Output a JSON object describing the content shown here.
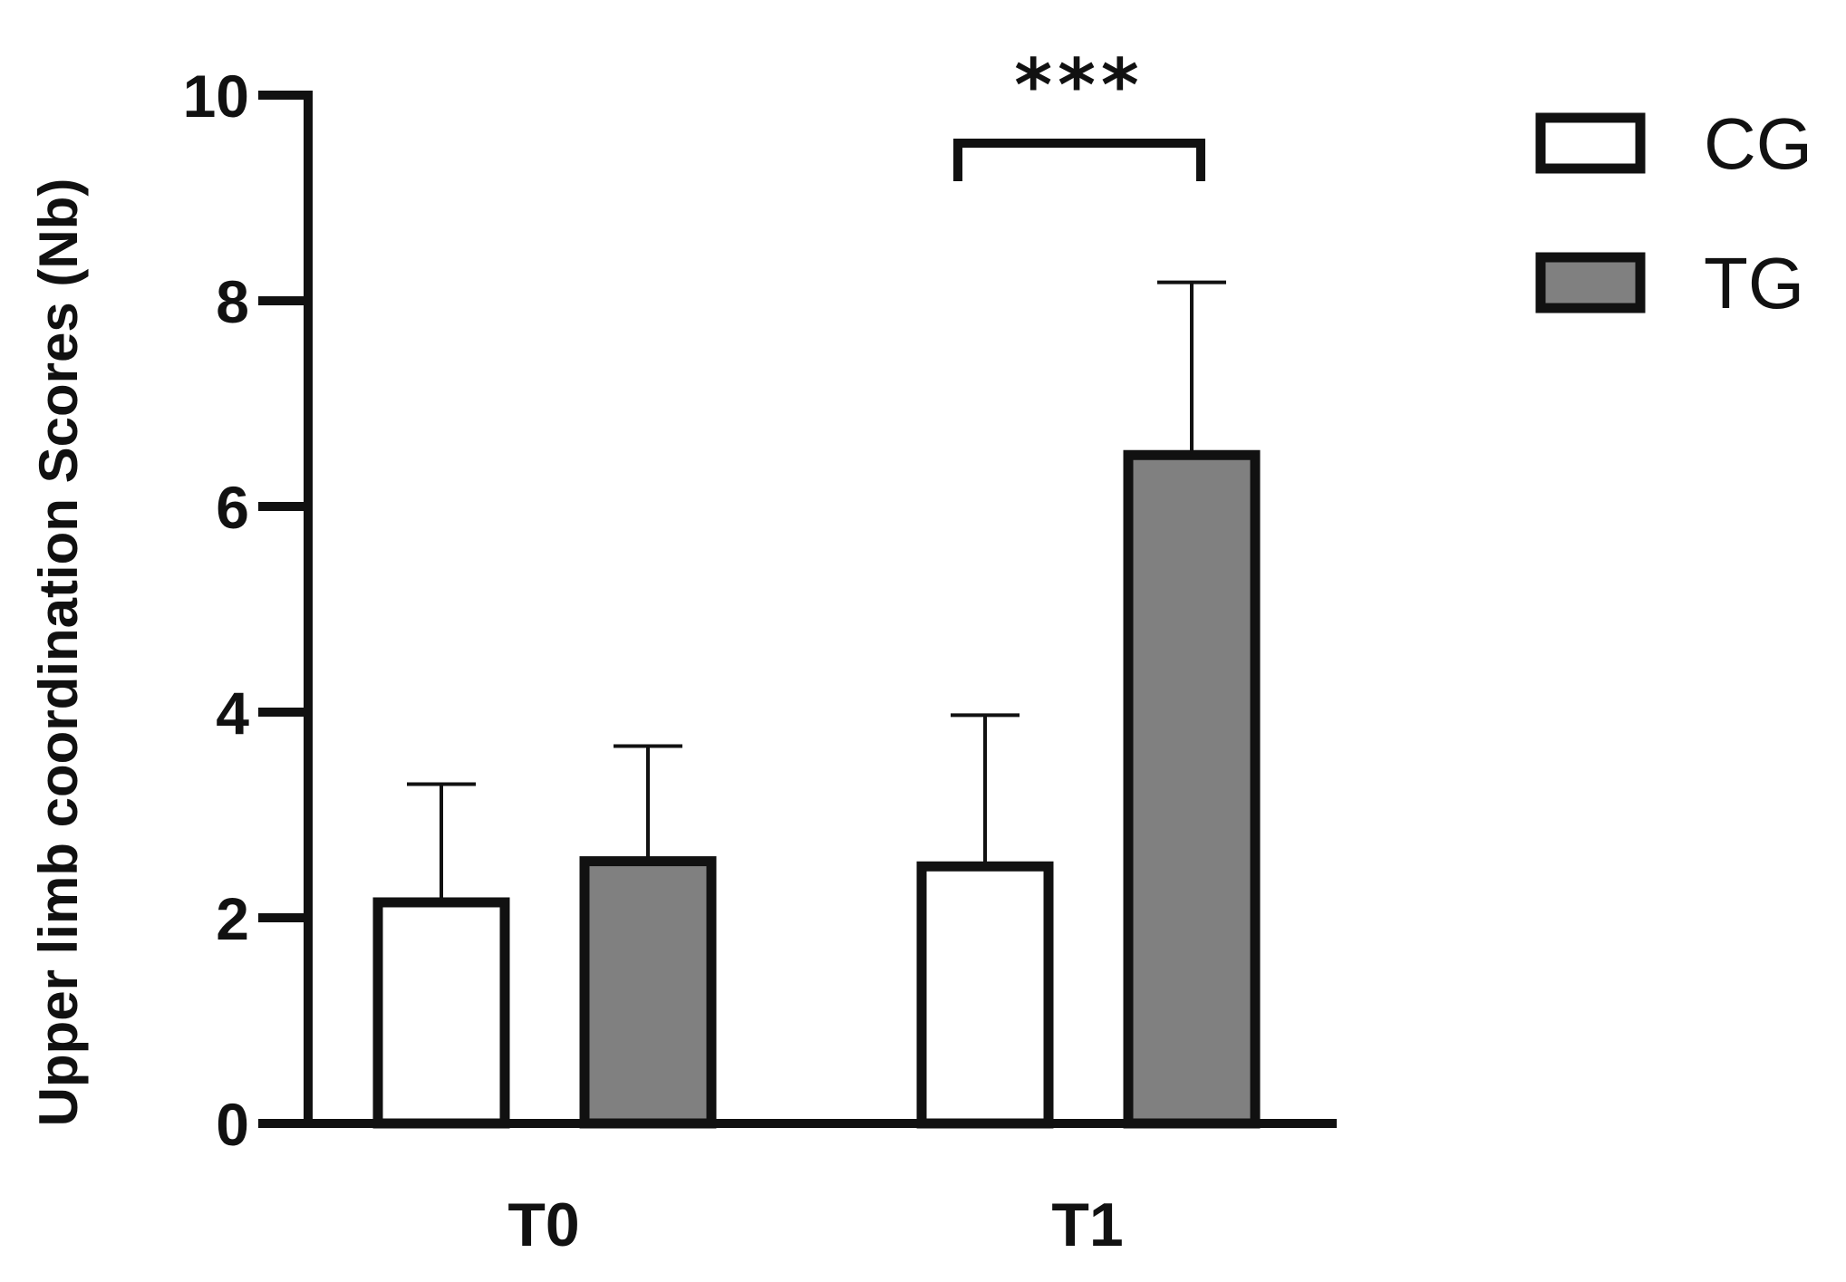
{
  "chart_data": {
    "type": "bar",
    "categories": [
      "T0",
      "T1"
    ],
    "series": [
      {
        "name": "CG",
        "values": [
          2.15,
          2.5
        ],
        "errors": [
          1.15,
          1.47
        ],
        "color": "#ffffff"
      },
      {
        "name": "TG",
        "values": [
          2.55,
          6.5
        ],
        "errors": [
          1.12,
          1.68
        ],
        "color": "#808080"
      }
    ],
    "ylabel": "Upper limb coordination Scores (Nb)",
    "xlabel": "",
    "ylim": [
      0,
      10
    ],
    "yticks": [
      0,
      2,
      4,
      6,
      8,
      10
    ],
    "legend": "top-right",
    "grid": false,
    "annotations": [
      {
        "text": "***",
        "category": "T1",
        "between": [
          "CG",
          "TG"
        ]
      }
    ]
  }
}
